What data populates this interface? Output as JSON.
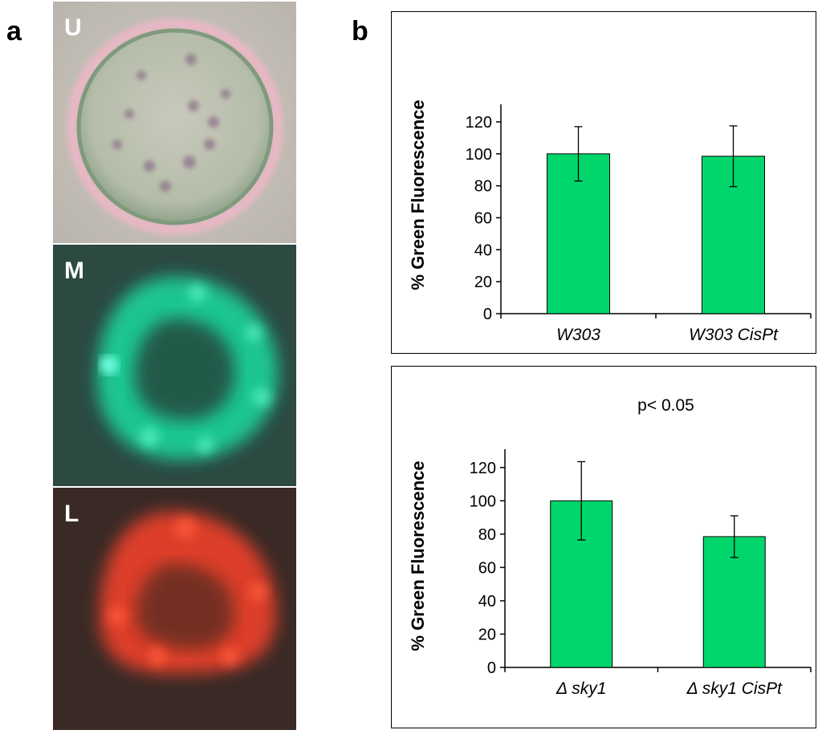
{
  "panel_a": {
    "letter": "a",
    "images": [
      {
        "label": "U",
        "channel": "brightfield",
        "color": "#c9c7b8"
      },
      {
        "label": "M",
        "channel": "green fluorescence",
        "color": "#1fd9a0"
      },
      {
        "label": "L",
        "channel": "red fluorescence",
        "color": "#ff4a2a"
      }
    ]
  },
  "panel_b": {
    "letter": "b"
  },
  "chart_data": [
    {
      "type": "bar",
      "title": "",
      "annotation": "",
      "ylabel": "% Green Fluorescence",
      "xlabel": "",
      "categories": [
        "W303",
        "W303 CisPt"
      ],
      "values": [
        100,
        98.5
      ],
      "error": [
        17,
        19
      ],
      "ylim": [
        0,
        130
      ],
      "yticks": [
        "0",
        "20",
        "40",
        "60",
        "80",
        "100",
        "120"
      ],
      "bar_color": "#00d66b",
      "grid": false,
      "legend": "none"
    },
    {
      "type": "bar",
      "title": "",
      "annotation": "p< 0.05",
      "ylabel": "% Green Fluorescence",
      "xlabel": "",
      "categories": [
        "Δ sky1",
        "Δ sky1 CisPt"
      ],
      "values": [
        100,
        78.5
      ],
      "error": [
        23.5,
        12.5
      ],
      "ylim": [
        0,
        130
      ],
      "yticks": [
        "0",
        "20",
        "40",
        "60",
        "80",
        "100",
        "120"
      ],
      "bar_color": "#00d66b",
      "grid": false,
      "legend": "none"
    }
  ]
}
